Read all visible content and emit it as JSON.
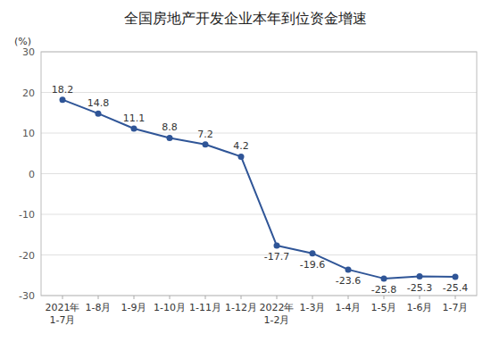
{
  "chart_data": {
    "type": "line",
    "title": "全国房地产开发企业本年到位资金增速",
    "ylabel": "(%)",
    "categories": [
      "2021年\n1-7月",
      "1-8月",
      "1-9月",
      "1-10月",
      "1-11月",
      "1-12月",
      "2022年\n1-2月",
      "1-3月",
      "1-4月",
      "1-5月",
      "1-6月",
      "1-7月"
    ],
    "values": [
      18.2,
      14.8,
      11.1,
      8.8,
      7.2,
      4.2,
      -17.7,
      -19.6,
      -23.6,
      -25.8,
      -25.3,
      -25.4
    ],
    "color": "#2F5597",
    "marker": "circle",
    "ylim": [
      -30,
      30
    ],
    "yticks": [
      -30,
      -20,
      -10,
      0,
      10,
      20,
      30
    ],
    "grid": true,
    "data_labels": true
  }
}
